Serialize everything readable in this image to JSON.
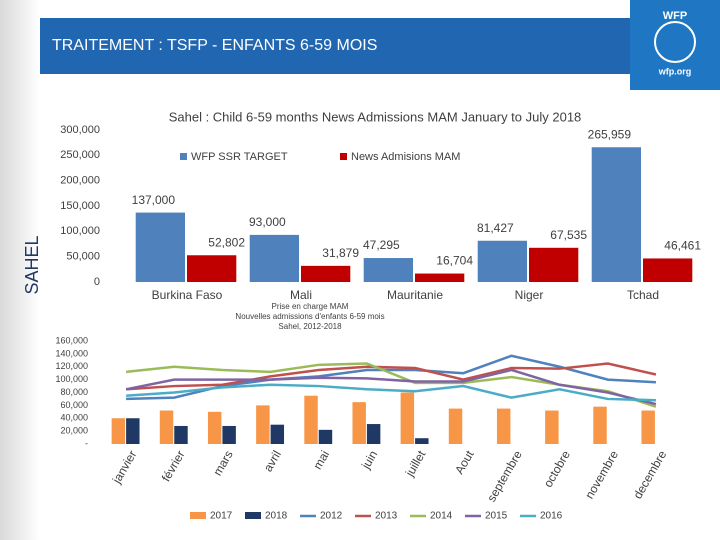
{
  "slide": {
    "title": "TRAITEMENT : TSFP - ENFANTS 6-59 MOIS",
    "side_label": "SAHEL",
    "logo_text": "WFP",
    "logo_url": "wfp.org"
  },
  "chart_data": [
    {
      "type": "bar",
      "title": "Sahel : Child 6-59 months News Admissions MAM January to July 2018",
      "categories": [
        "Burkina Faso",
        "Mali",
        "Mauritanie",
        "Niger",
        "Tchad"
      ],
      "series": [
        {
          "name": "WFP SSR TARGET",
          "color": "#4f81bd",
          "values": [
            137000,
            93000,
            47295,
            81427,
            265959
          ],
          "value_labels": [
            "137,000",
            "93,000",
            "47,295",
            "81,427",
            "265,959"
          ]
        },
        {
          "name": "News Admisions MAM",
          "color": "#c00000",
          "values": [
            52802,
            31879,
            16704,
            67535,
            46461
          ],
          "value_labels": [
            "52,802",
            "31,879",
            "16,704",
            "67,535",
            "46,461"
          ]
        }
      ],
      "ylim": [
        0,
        300000
      ],
      "yticks": [
        0,
        {
          "value": 50000,
          "label": "50,000"
        },
        {
          "value": 100000,
          "label": "100,000"
        },
        {
          "value": 150000,
          "label": "150,000"
        },
        {
          "value": 200000,
          "label": "200,000"
        },
        {
          "value": 250000,
          "label": "250,000"
        },
        {
          "value": 300000,
          "label": "300,000"
        }
      ],
      "grid": false,
      "legend": "top"
    },
    {
      "type": "combo",
      "title": [
        "Prise en charge MAM",
        "Nouvelles admissions d'enfants 6-59 mois",
        "Sahel, 2012-2018"
      ],
      "categories": [
        "janvier",
        "février",
        "mars",
        "avril",
        "mai",
        "juin",
        "juillet",
        "Aout",
        "septembre",
        "octobre",
        "novembre",
        "decembre"
      ],
      "series": [
        {
          "name": "2017",
          "kind": "bar",
          "color": "#f79646",
          "values": [
            40000,
            52000,
            50000,
            60000,
            75000,
            65000,
            80000,
            55000,
            55000,
            52000,
            58000,
            52000
          ]
        },
        {
          "name": "2018",
          "kind": "bar",
          "color": "#1f3864",
          "values": [
            40000,
            28000,
            28000,
            30000,
            22000,
            31000,
            9000,
            null,
            null,
            null,
            null,
            null
          ]
        },
        {
          "name": "2012",
          "kind": "line",
          "color": "#4f81bd",
          "values": [
            70000,
            72000,
            90000,
            100000,
            105000,
            115000,
            115000,
            110000,
            137000,
            120000,
            100000,
            96000
          ]
        },
        {
          "name": "2013",
          "kind": "line",
          "color": "#c0504d",
          "values": [
            85000,
            90000,
            92000,
            105000,
            115000,
            120000,
            118000,
            100000,
            118000,
            117000,
            125000,
            108000
          ]
        },
        {
          "name": "2014",
          "kind": "line",
          "color": "#9bbb59",
          "values": [
            112000,
            120000,
            115000,
            112000,
            123000,
            125000,
            95000,
            95000,
            104000,
            92000,
            82000,
            58000
          ]
        },
        {
          "name": "2015",
          "kind": "line",
          "color": "#8064a2",
          "values": [
            85000,
            100000,
            100000,
            100000,
            103000,
            102000,
            97000,
            97000,
            115000,
            92000,
            80000,
            62000
          ]
        },
        {
          "name": "2016",
          "kind": "line",
          "color": "#4bacc6",
          "values": [
            75000,
            80000,
            88000,
            92000,
            90000,
            85000,
            82000,
            90000,
            72000,
            85000,
            70000,
            68000
          ]
        }
      ],
      "ylim": [
        0,
        160000
      ],
      "yticks": [
        {
          "value": 0,
          "label": "-"
        },
        {
          "value": 20000,
          "label": "20,000"
        },
        {
          "value": 40000,
          "label": "40,000"
        },
        {
          "value": 60000,
          "label": "60,000"
        },
        {
          "value": 80000,
          "label": "80,000"
        },
        {
          "value": 100000,
          "label": "100,000"
        },
        {
          "value": 120000,
          "label": "120,000"
        },
        {
          "value": 140000,
          "label": "140,000"
        },
        {
          "value": 160000,
          "label": "160,000"
        }
      ],
      "grid": false,
      "legend": "bottom"
    }
  ]
}
